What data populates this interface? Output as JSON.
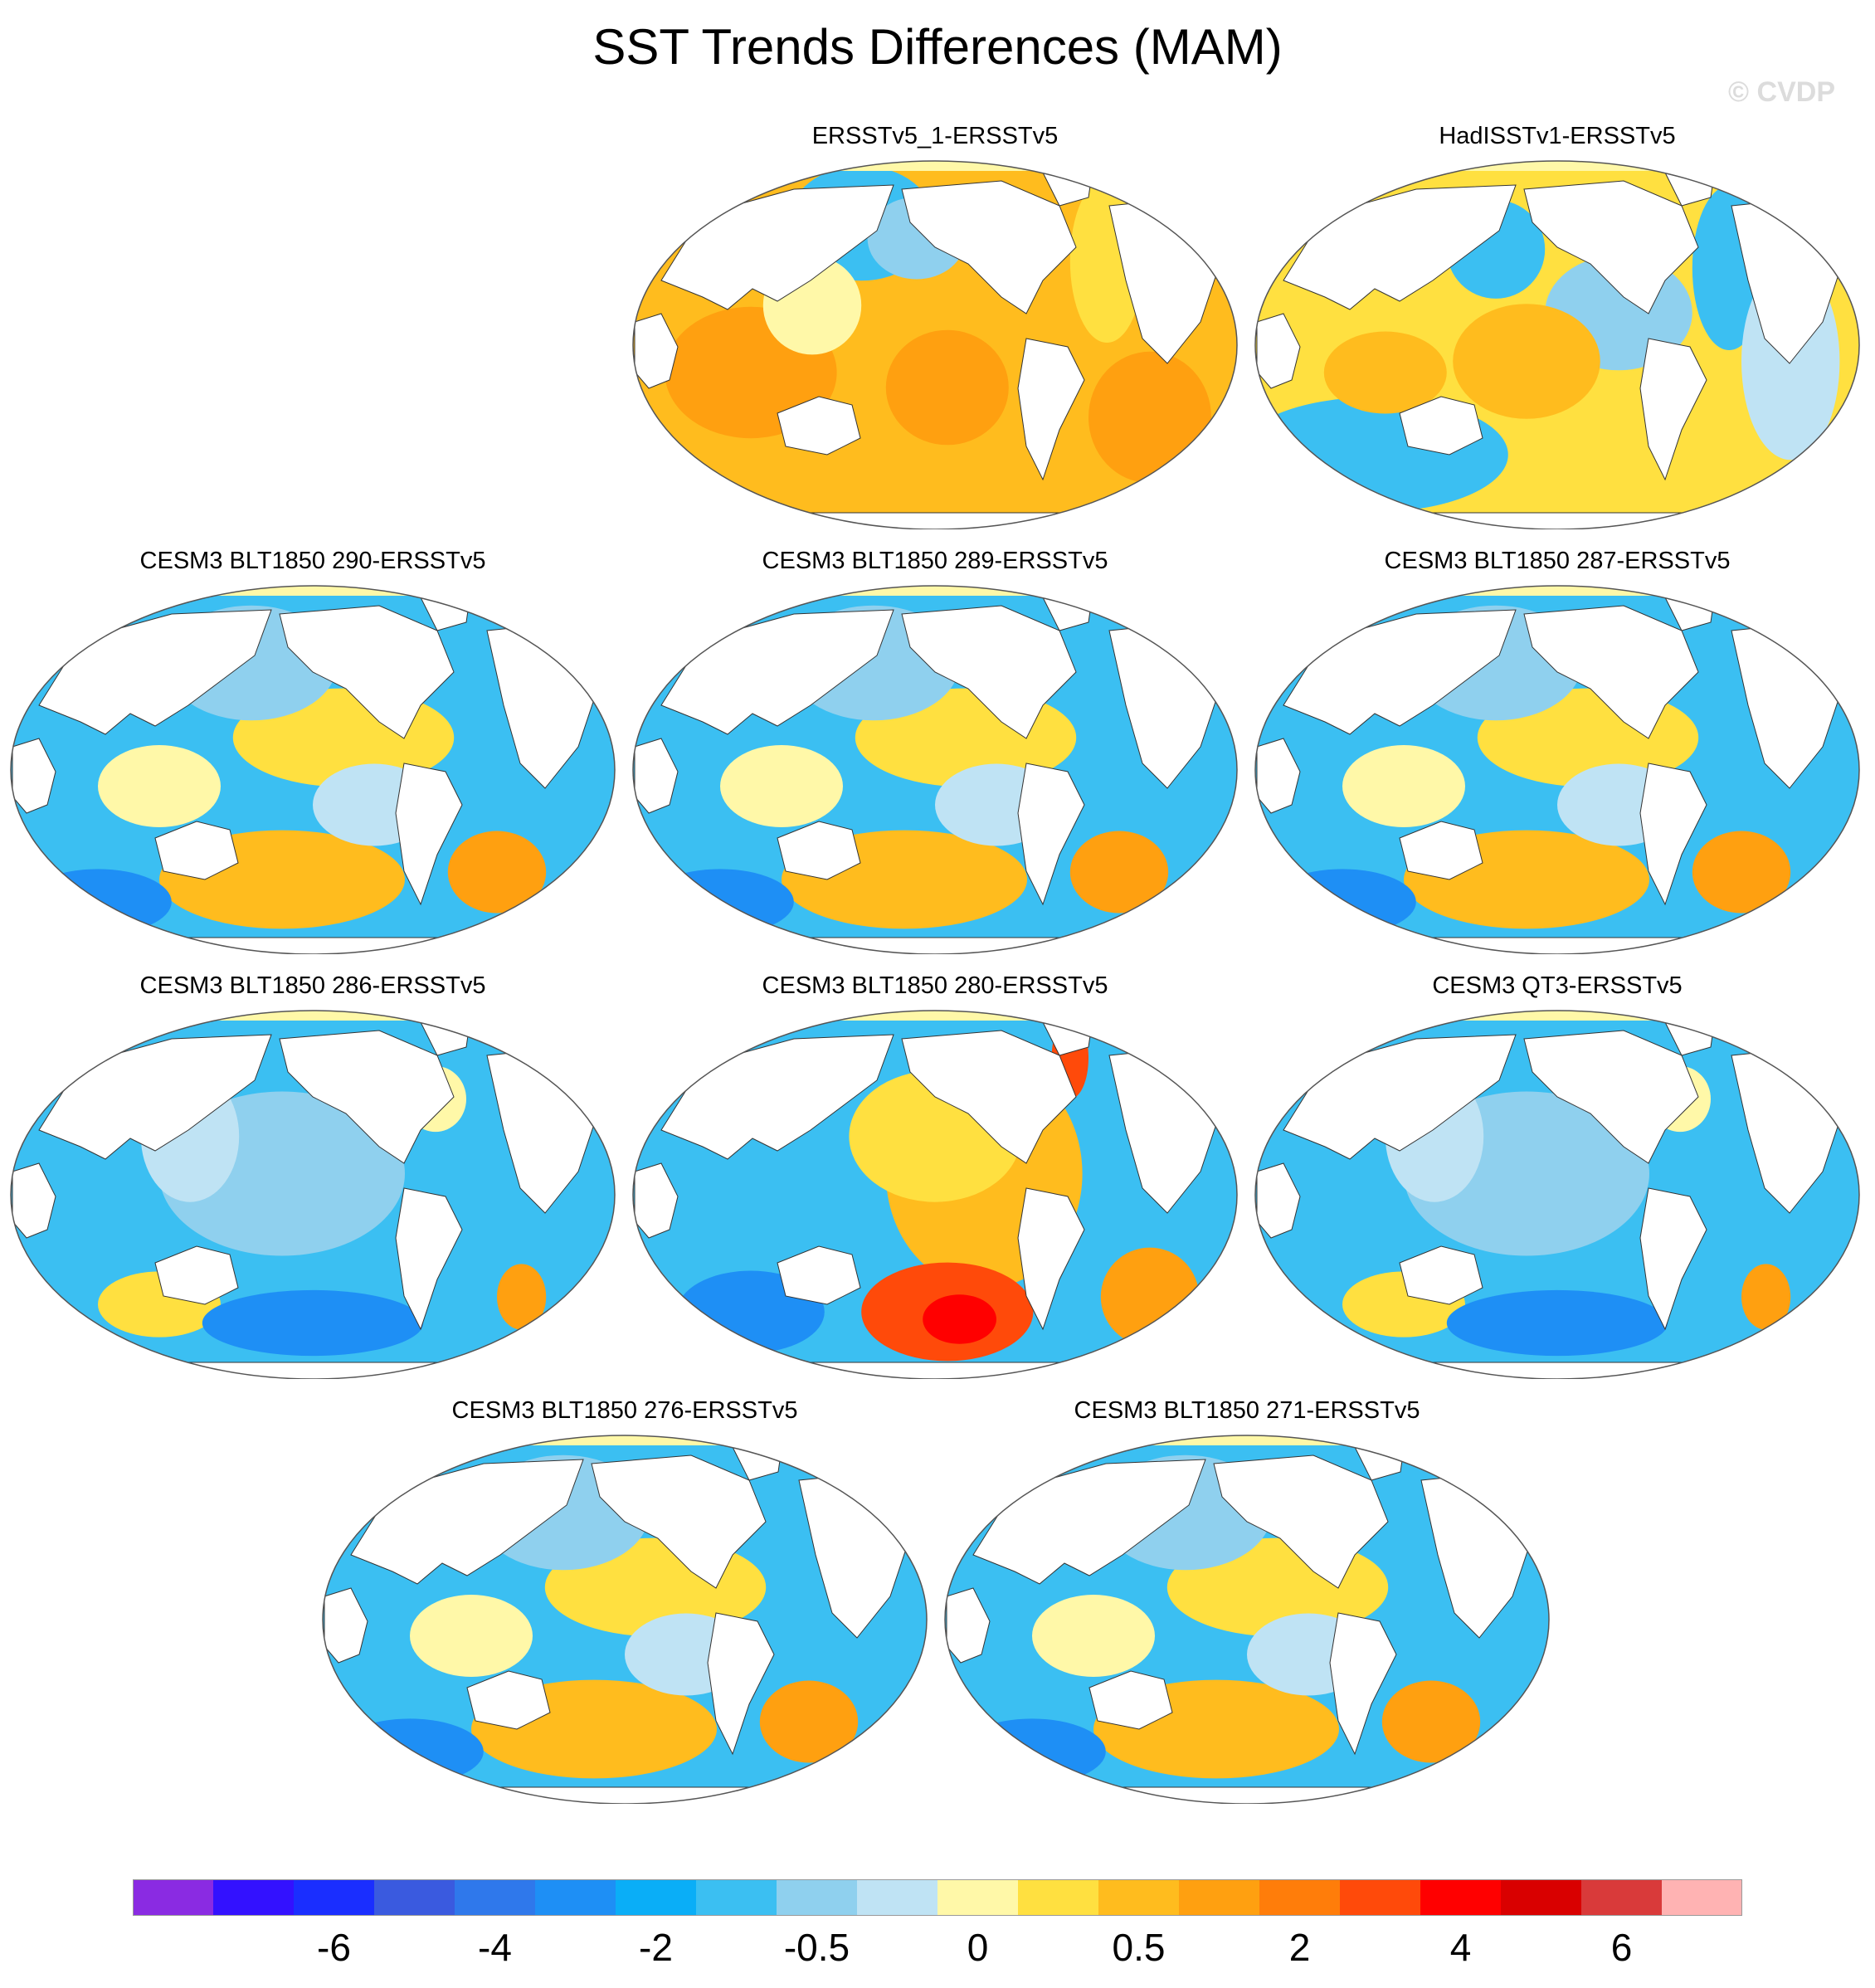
{
  "title": "SST Trends Differences (MAM)",
  "copyright": "© CVDP",
  "panels": [
    {
      "title": "ERSSTv5_1-ERSSTv5",
      "pattern": "warm_wide"
    },
    {
      "title": "HadISSTv1-ERSSTv5",
      "pattern": "mixed_warm"
    },
    {
      "title": "CESM3 BLT1850 290-ERSSTv5",
      "pattern": "cool_south_warm"
    },
    {
      "title": "CESM3 BLT1850 289-ERSSTv5",
      "pattern": "cool_south_warm"
    },
    {
      "title": "CESM3 BLT1850 287-ERSSTv5",
      "pattern": "cool_south_warm"
    },
    {
      "title": "CESM3 BLT1850 286-ERSSTv5",
      "pattern": "cool"
    },
    {
      "title": "CESM3 BLT1850 280-ERSSTv5",
      "pattern": "warm_east_pacific"
    },
    {
      "title": "CESM3 QT3-ERSSTv5",
      "pattern": "cool"
    },
    {
      "title": "CESM3 BLT1850 276-ERSSTv5",
      "pattern": "cool_south_warm"
    },
    {
      "title": "CESM3 BLT1850 271-ERSSTv5",
      "pattern": "cool_south_warm"
    }
  ],
  "colorbar": {
    "colors": [
      "#8a2be2",
      "#3311ff",
      "#1a2eff",
      "#3a5adf",
      "#2f78eb",
      "#1e8ff5",
      "#0aaef7",
      "#3bbff2",
      "#8fd0ee",
      "#bfe3f4",
      "#fff8a8",
      "#ffe040",
      "#ffbc1e",
      "#ffa010",
      "#ff7d0a",
      "#ff4a0a",
      "#ff0000",
      "#d90000",
      "#d93a3a",
      "#ffb3b3"
    ],
    "labels": [
      "-6",
      "-4",
      "-2",
      "-0.5",
      "0",
      "0.5",
      "2",
      "4",
      "6"
    ],
    "label_boundaries": [
      2,
      4,
      6,
      8,
      10,
      12,
      14,
      16,
      18
    ]
  }
}
